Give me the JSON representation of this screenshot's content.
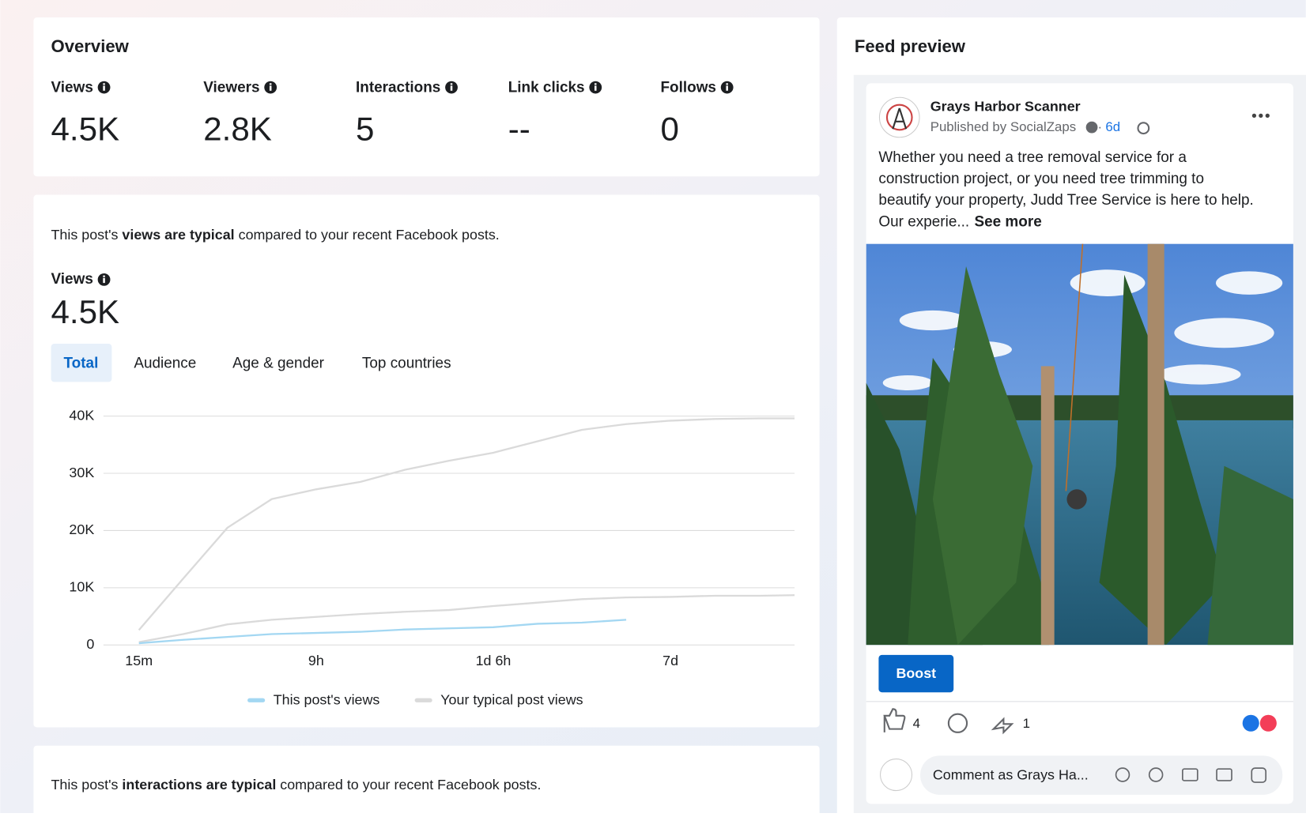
{
  "overview": {
    "title": "Overview",
    "metrics": [
      {
        "label": "Views",
        "value": "4.5K"
      },
      {
        "label": "Viewers",
        "value": "2.8K"
      },
      {
        "label": "Interactions",
        "value": "5"
      },
      {
        "label": "Link clicks",
        "value": "--"
      },
      {
        "label": "Follows",
        "value": "0"
      }
    ]
  },
  "views_card": {
    "summary_prefix": "This post's ",
    "summary_bold": "views are typical",
    "summary_suffix": " compared to your recent Facebook posts.",
    "metric_label": "Views",
    "metric_value": "4.5K",
    "tabs": [
      "Total",
      "Audience",
      "Age & gender",
      "Top countries"
    ]
  },
  "chart_data": {
    "type": "line",
    "x": [
      1,
      1.25,
      1.5,
      1.75,
      2,
      2.25,
      2.5,
      2.75,
      3,
      3.25,
      3.5,
      3.75,
      4,
      4.25,
      4.5,
      4.7
    ],
    "xlim": [
      0.8,
      4.7
    ],
    "xticks": [
      {
        "value": 1,
        "label": "15m"
      },
      {
        "value": 2,
        "label": "9h"
      },
      {
        "value": 3,
        "label": "1d 6h"
      },
      {
        "value": 4,
        "label": "7d"
      }
    ],
    "ylim": [
      0,
      40000
    ],
    "yticks": [
      {
        "value": 0,
        "label": "0"
      },
      {
        "value": 10000,
        "label": "10K"
      },
      {
        "value": 20000,
        "label": "20K"
      },
      {
        "value": 30000,
        "label": "30K"
      },
      {
        "value": 40000,
        "label": "40K"
      }
    ],
    "grid": true,
    "series": [
      {
        "name": "This post's views",
        "color": "#a3d7f2",
        "values": [
          300,
          900,
          1400,
          1900,
          2100,
          2300,
          2700,
          2900,
          3100,
          3700,
          3900,
          4400,
          null,
          null,
          null,
          null
        ]
      },
      {
        "name": "Your typical post views",
        "color": "#dadada",
        "values": [
          2600,
          11600,
          20500,
          25500,
          27200,
          28500,
          30600,
          32200,
          33600,
          35600,
          37600,
          38600,
          39200,
          39500,
          39600,
          39600
        ]
      },
      {
        "color": "#dadada",
        "values": [
          500,
          1900,
          3600,
          4400,
          4900,
          5400,
          5800,
          6100,
          6800,
          7400,
          8000,
          8300,
          8400,
          8600,
          8600,
          8700
        ]
      }
    ]
  },
  "interactions_card": {
    "summary_prefix": "This post's ",
    "summary_bold": "interactions are typical",
    "summary_suffix": " compared to your recent Facebook posts."
  },
  "feed_preview": {
    "title": "Feed preview",
    "page_name": "Grays Harbor Scanner",
    "published_by": "Published by SocialZaps",
    "separator": "·",
    "time": "6d",
    "body_lines": [
      "Whether you need a tree removal service for a",
      "construction project, or you need tree trimming to",
      "beautify your property, Judd Tree Service is here to help.",
      "Our experie..."
    ],
    "see_more": "See more",
    "boost": "Boost",
    "likes": "4",
    "shares": "1",
    "comment_placeholder": "Comment as Grays Ha..."
  }
}
